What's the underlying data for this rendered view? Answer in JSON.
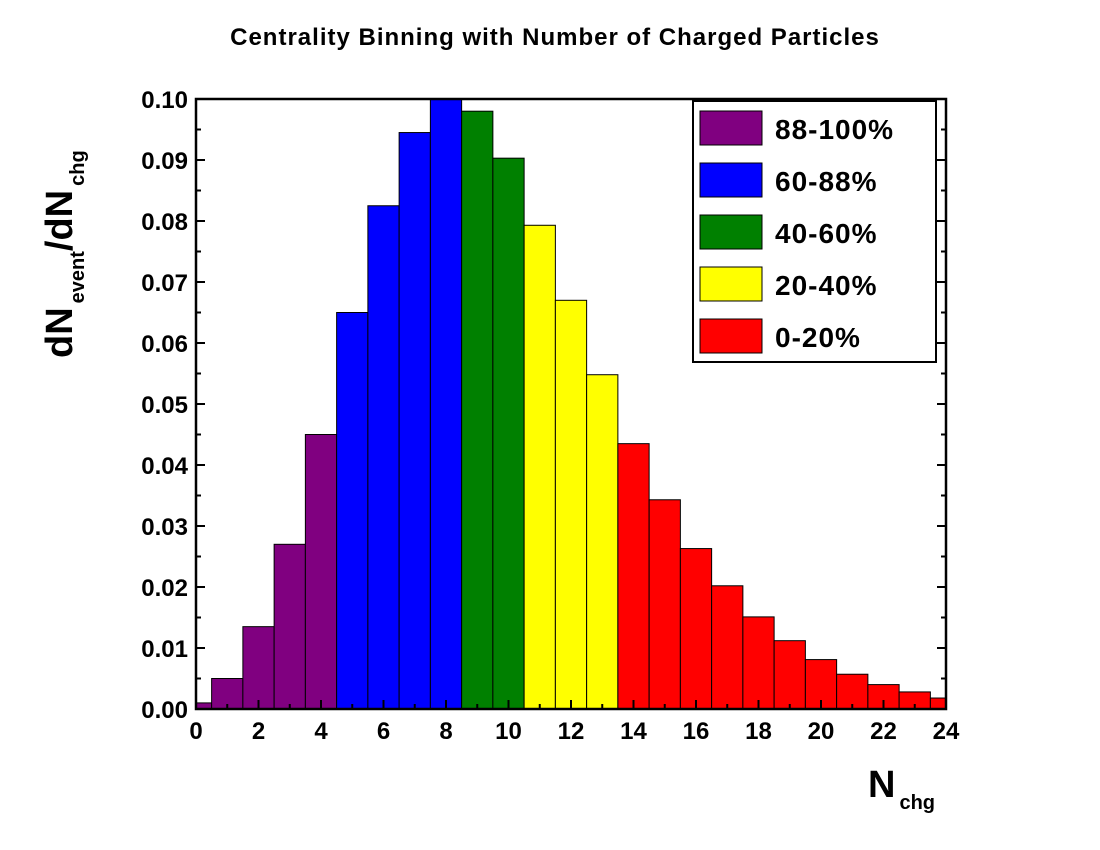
{
  "chart_data": {
    "type": "histogram",
    "title": "Centrality Binning with Number of Charged Particles",
    "xlabel": [
      {
        "text": "N",
        "sub": false
      },
      {
        "text": "chg",
        "sub": true
      }
    ],
    "ylabel": [
      {
        "text": "dN",
        "sub": false
      },
      {
        "text": "event",
        "sub": true
      },
      {
        "text": "/dN",
        "sub": false
      },
      {
        "text": "chg",
        "sub": true
      }
    ],
    "xlim": [
      0,
      24
    ],
    "ylim": [
      0,
      0.1
    ],
    "xticks": [
      0,
      2,
      4,
      6,
      8,
      10,
      12,
      14,
      16,
      18,
      20,
      22,
      24
    ],
    "xminorticks": [
      1,
      3,
      5,
      7,
      9,
      11,
      13,
      15,
      17,
      19,
      21,
      23
    ],
    "yticks": [
      {
        "value": 0,
        "label": "0.00"
      },
      0.01,
      0.02,
      0.03,
      0.04,
      0.05,
      0.06,
      0.07,
      0.08,
      0.09,
      {
        "value": 0.1,
        "label": "0.10"
      }
    ],
    "yminorticks": [
      0.005,
      0.015,
      0.025,
      0.035,
      0.045,
      0.055,
      0.065,
      0.075,
      0.085,
      0.095
    ],
    "legend": "upper right",
    "series": [
      {
        "name": "88-100%",
        "color": "#800080",
        "bins": [
          0,
          0.5,
          1.5,
          2.5,
          3.5,
          4.5
        ],
        "values": [
          0.001,
          0.005,
          0.0135,
          0.027,
          0.045
        ]
      },
      {
        "name": "60-88%",
        "color": "#0000ff",
        "bins": [
          4.5,
          5.5,
          6.5,
          7.5,
          8.5
        ],
        "values": [
          0.065,
          0.0825,
          0.0945,
          0.1
        ]
      },
      {
        "name": "40-60%",
        "color": "#008000",
        "bins": [
          8.5,
          9.5,
          10.5
        ],
        "values": [
          0.098,
          0.0903
        ]
      },
      {
        "name": "20-40%",
        "color": "#ffff00",
        "bins": [
          10.5,
          11.5,
          12.5,
          13.5
        ],
        "values": [
          0.0793,
          0.067,
          0.0548
        ]
      },
      {
        "name": "0-20%",
        "color": "#ff0000",
        "bins": [
          13.5,
          14.5,
          15.5,
          16.5,
          17.5,
          18.5,
          19.5,
          20.5,
          21.5,
          22.5,
          23.5,
          24
        ],
        "values": [
          0.0435,
          0.0343,
          0.0263,
          0.0202,
          0.0151,
          0.0112,
          0.0081,
          0.0057,
          0.004,
          0.0028,
          0.0018
        ]
      }
    ]
  }
}
